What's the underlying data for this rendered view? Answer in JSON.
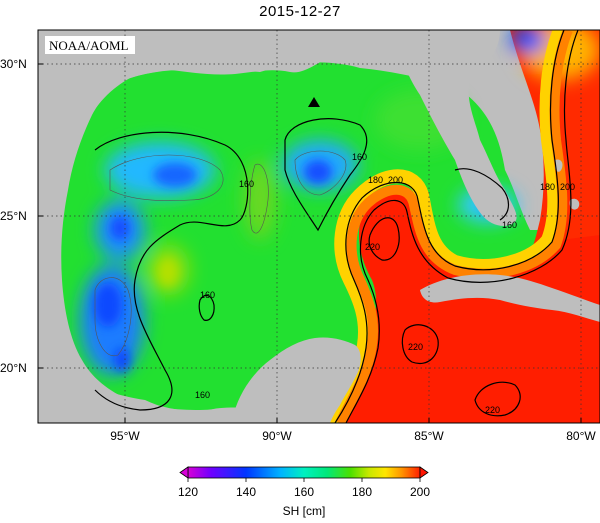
{
  "title": "2015-12-27",
  "credit": "NOAA/AOML",
  "map": {
    "lat_ticks": [
      "30°N",
      "25°N",
      "20°N"
    ],
    "lon_ticks": [
      "95°W",
      "90°W",
      "85°W",
      "80°W"
    ],
    "land_color": "#bebebe",
    "contour_labels": [
      "160",
      "160",
      "160",
      "180",
      "200",
      "220",
      "220",
      "220",
      "180",
      "200",
      "160",
      "160"
    ],
    "marker": "black-triangle"
  },
  "colorbar": {
    "label": "SH [cm]",
    "ticks": [
      "120",
      "140",
      "160",
      "180",
      "200"
    ],
    "range": [
      120,
      200
    ],
    "colors": [
      "#d700d7",
      "#6e00ff",
      "#0036ff",
      "#00b4ff",
      "#00f0d8",
      "#00e87a",
      "#4ce000",
      "#b4e000",
      "#ffe600",
      "#ff9600",
      "#ff3c00",
      "#ff1400"
    ]
  }
}
